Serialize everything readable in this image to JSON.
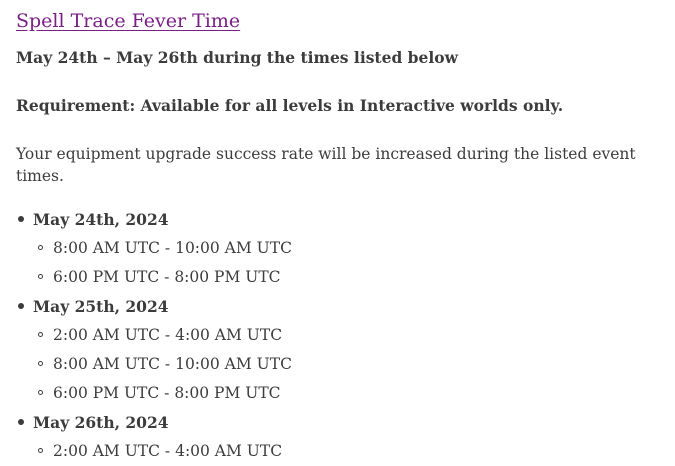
{
  "event": {
    "title": "Spell Trace Fever Time",
    "dates": "May 24th – May 26th during the times listed below",
    "requirement": "Requirement: Available for all levels in Interactive worlds only.",
    "description": "Your equipment upgrade success rate will be increased during the listed event times."
  },
  "schedule": [
    {
      "day": "May 24th, 2024",
      "times": [
        "8:00 AM UTC - 10:00 AM UTC",
        "6:00 PM UTC - 8:00 PM UTC"
      ]
    },
    {
      "day": "May 25th, 2024",
      "times": [
        "2:00 AM UTC - 4:00 AM UTC",
        "8:00 AM UTC - 10:00 AM UTC",
        "6:00 PM UTC - 8:00 PM UTC"
      ]
    },
    {
      "day": "May 26th, 2024",
      "times": [
        "2:00 AM UTC - 4:00 AM UTC"
      ]
    }
  ],
  "colors": {
    "link": "#7a1f86",
    "text": "#3c3c3c",
    "background": "#ffffff"
  }
}
